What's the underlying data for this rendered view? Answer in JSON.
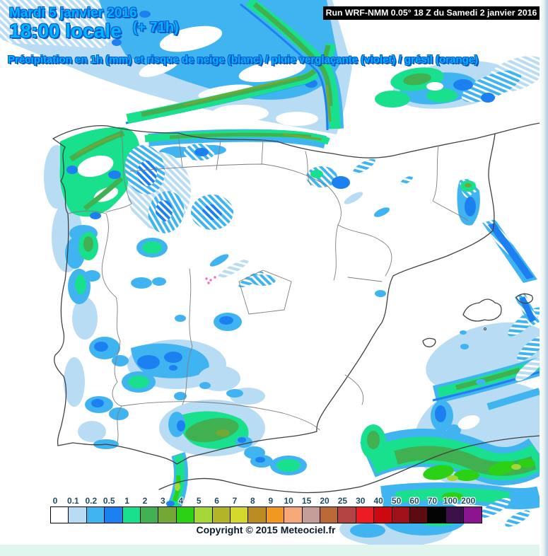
{
  "page": {
    "edge_right_color": "#AECBE9",
    "edge_bottom_color": "#DFF5EE",
    "map_background": "#FFFFFF"
  },
  "header": {
    "date_line": "Mardi 5 janvier 2016",
    "time_line": "18:00 locale",
    "time_offset": "(+ 71h)",
    "subtitle": "Précipitation en 1h (mm) et risque de neige (blanc) / pluie verglaçante (violet) / grésil (orange)",
    "text_color": "#00B4FF",
    "outline_color": "#0A58C8"
  },
  "run_info": {
    "label": "Run WRF-NMM 0.05° 18 Z du Samedi 2 janvier 2016",
    "background": "#000000",
    "text_color": "#FFFFFF"
  },
  "legend": {
    "unit": "mm",
    "labels": [
      "0",
      "0.1",
      "0.2",
      "0.5",
      "1",
      "2",
      "3",
      "4",
      "5",
      "6",
      "7",
      "8",
      "9",
      "10",
      "15",
      "20",
      "25",
      "30",
      "40",
      "50",
      "60",
      "70",
      "100",
      "200"
    ],
    "colors": [
      "#FFFFFF",
      "#B8DCF4",
      "#40B4F0",
      "#1C80F0",
      "#18E08C",
      "#40B050",
      "#74A834",
      "#2CD014",
      "#A4D838",
      "#B4B428",
      "#D4D82C",
      "#BC8C24",
      "#F09820",
      "#F8A878",
      "#C49C98",
      "#BC6834",
      "#B44444",
      "#EC1C24",
      "#CC0810",
      "#A01018",
      "#5C0C10",
      "#040404",
      "#3C1048",
      "#8C1490"
    ],
    "freezing_rain_mark_color": "#F06CC8",
    "copyright": "Copyright © 2015 Meteociel.fr"
  }
}
